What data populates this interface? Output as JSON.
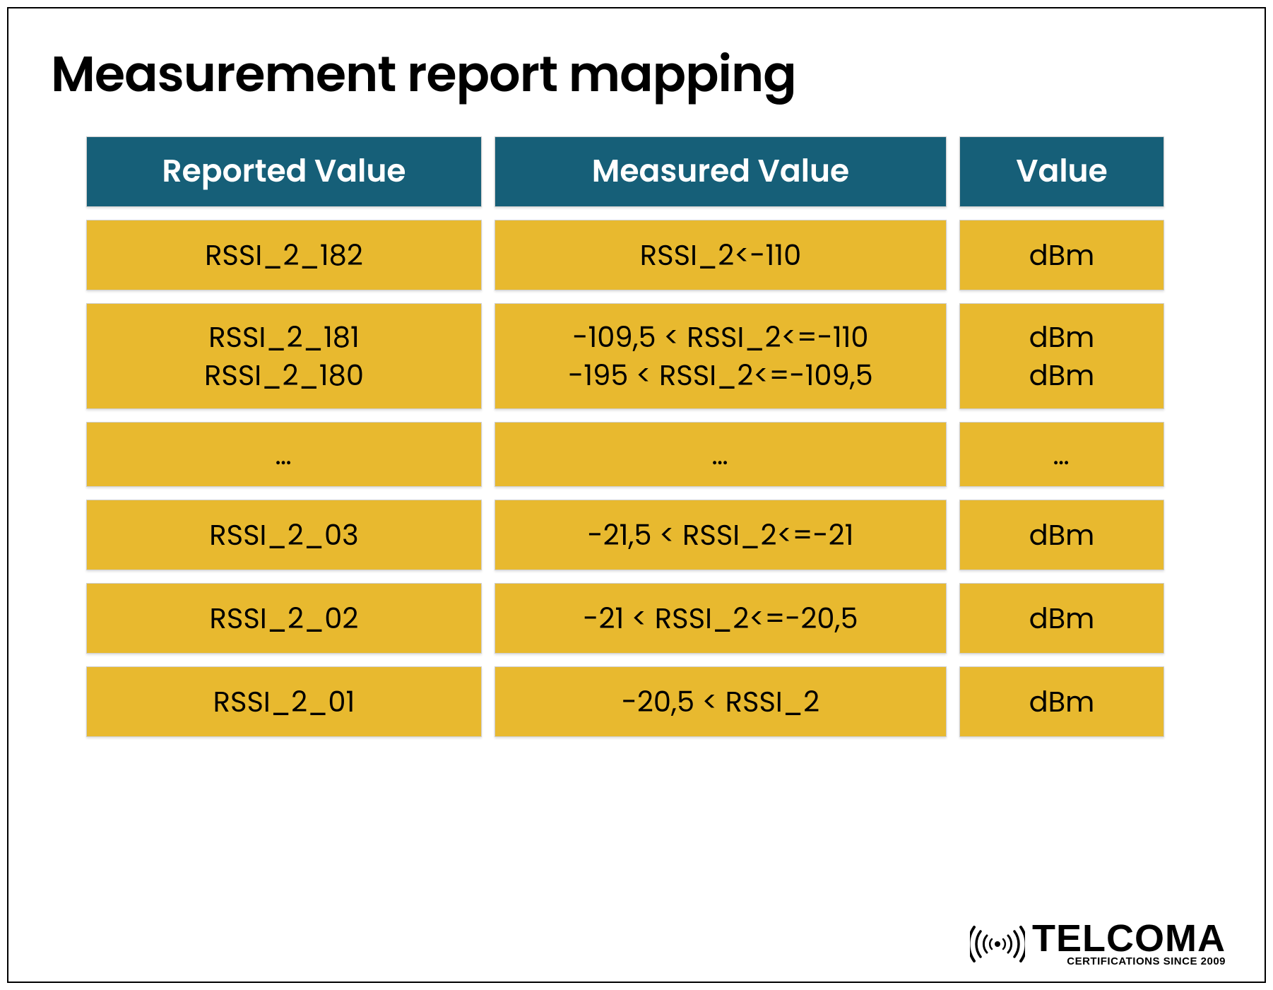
{
  "title": "Measurement report mapping",
  "table": {
    "header_bg": "#165f78",
    "header_fg": "#ffffff",
    "body_bg": "#e8b92f",
    "body_fg": "#000000",
    "columns": [
      "Reported Value",
      "Measured Value",
      "Value"
    ],
    "rows": [
      {
        "reported": [
          "RSSI_2_182"
        ],
        "measured": [
          "RSSI_2<-110"
        ],
        "value": [
          "dBm"
        ],
        "tall": false
      },
      {
        "reported": [
          "RSSI_2_181",
          "RSSI_2_180"
        ],
        "measured": [
          "-109,5 < RSSI_2<=-110",
          "-195 < RSSI_2<=-109,5"
        ],
        "value": [
          "dBm",
          "dBm"
        ],
        "tall": true
      },
      {
        "reported": [
          "…"
        ],
        "measured": [
          "…"
        ],
        "value": [
          "…"
        ],
        "ellipsis": true
      },
      {
        "reported": [
          "RSSI_2_03"
        ],
        "measured": [
          "-21,5 < RSSI_2<=-21"
        ],
        "value": [
          "dBm"
        ],
        "tall": false
      },
      {
        "reported": [
          "RSSI_2_02"
        ],
        "measured": [
          "-21 < RSSI_2<=-20,5"
        ],
        "value": [
          "dBm"
        ],
        "tall": false
      },
      {
        "reported": [
          "RSSI_2_01"
        ],
        "measured": [
          "-20,5 < RSSI_2"
        ],
        "value": [
          "dBm"
        ],
        "tall": false
      }
    ]
  },
  "logo": {
    "main": "TELCOMA",
    "sub": "CERTIFICATIONS SINCE 2009"
  }
}
